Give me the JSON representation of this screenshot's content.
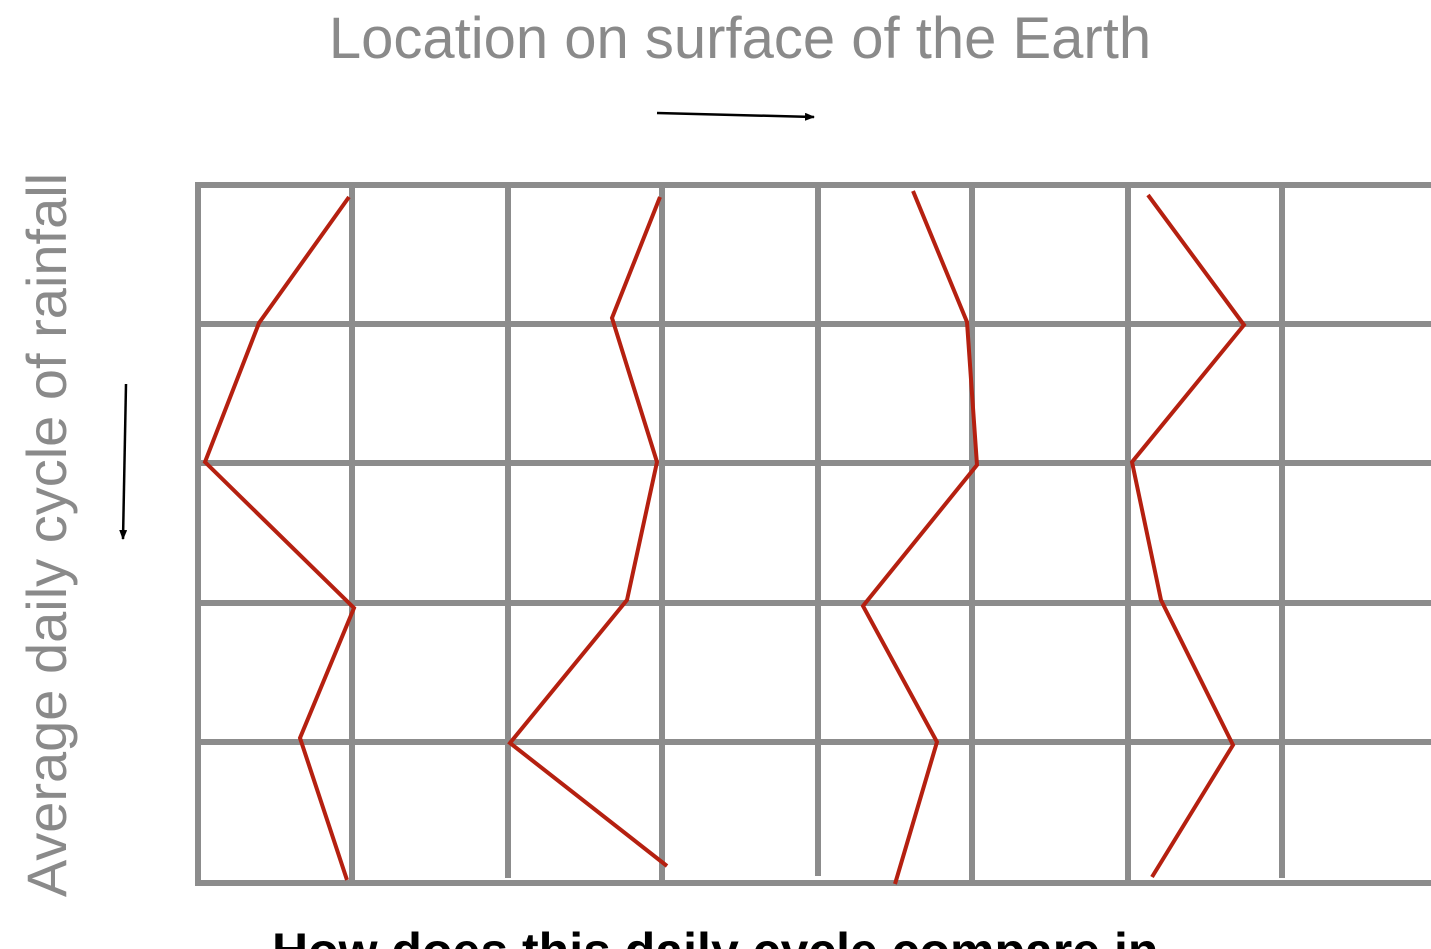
{
  "header": {
    "title": "Location on surface of the Earth"
  },
  "side_label": "Average daily cycle of rainfall",
  "footer": {
    "question": "How does this daily cycle compare in"
  }
}
